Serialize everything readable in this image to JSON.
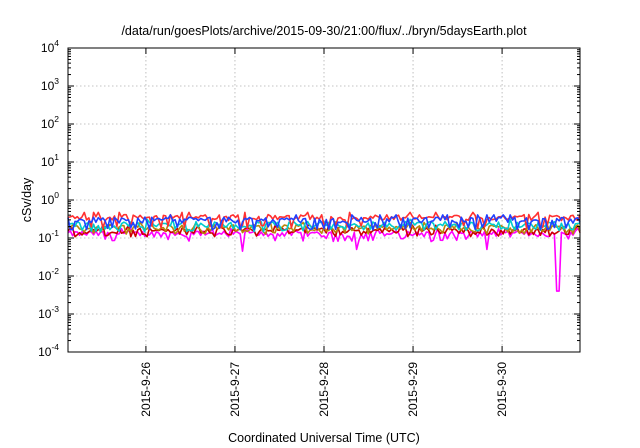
{
  "chart_data": {
    "type": "line",
    "title": "/data/run/goesPlots/archive/2015-09-30/21:00/flux/../bryn/5daysEarth.plot",
    "xlabel": "Coordinated Universal Time (UTC)",
    "ylabel": "cSv/day",
    "yscale": "log",
    "ylim": [
      0.0001,
      10000
    ],
    "yticks": [
      {
        "base": "10",
        "exp": "-4"
      },
      {
        "base": "10",
        "exp": "-3"
      },
      {
        "base": "10",
        "exp": "-2"
      },
      {
        "base": "10",
        "exp": "-1"
      },
      {
        "base": "10",
        "exp": "0"
      },
      {
        "base": "10",
        "exp": "1"
      },
      {
        "base": "10",
        "exp": "2"
      },
      {
        "base": "10",
        "exp": "3"
      },
      {
        "base": "10",
        "exp": "4"
      }
    ],
    "xlim": [
      "2015-09-25 03:00",
      "2015-09-30 21:00"
    ],
    "xticks": [
      "2015-9-26",
      "2015-9-27",
      "2015-9-28",
      "2015-9-29",
      "2015-9-30"
    ],
    "grid": true,
    "legend": "none",
    "series": [
      {
        "color": "#ff00ff",
        "typical": 0.13,
        "low": 0.09,
        "dips": [
          {
            "x": "2015-09-27 02:00",
            "y": 0.045
          },
          {
            "x": "2015-09-28 09:00",
            "y": 0.05
          },
          {
            "x": "2015-09-29 20:00",
            "y": 0.05
          },
          {
            "x": "2015-09-30 15:00",
            "y": 0.004
          }
        ]
      },
      {
        "color": "#cc0000",
        "typical": 0.16,
        "low": 0.12,
        "dips": []
      },
      {
        "color": "#b8860b",
        "typical": 0.19,
        "low": 0.14,
        "dips": []
      },
      {
        "color": "#00cccc",
        "typical": 0.23,
        "low": 0.16,
        "dips": []
      },
      {
        "color": "#ff3030",
        "typical": 0.35,
        "low": 0.2,
        "dips": []
      },
      {
        "color": "#2040ff",
        "typical": 0.3,
        "low": 0.18,
        "dips": []
      }
    ]
  }
}
